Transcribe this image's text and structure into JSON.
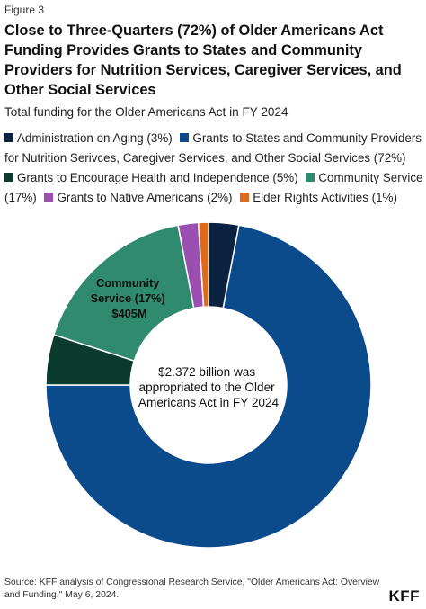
{
  "figure_label": "Figure 3",
  "brand": "KFF",
  "source": "Source: KFF analysis of Congressional Research Service, \"Older Americans Act: Overview and Funding,\" May 6, 2024.",
  "chart_data": {
    "type": "pie",
    "title": "Close to Three-Quarters (72%) of Older Americans Act Funding Provides Grants to States and Community Providers for Nutrition Services, Caregiver Services, and Other Social Services",
    "subtitle": "Total funding for the Older Americans Act in FY 2024",
    "legend_position": "top",
    "center_text": [
      "$2.372 billion was",
      "appropriated to the Older",
      "Americans Act in FY 2024"
    ],
    "slices": [
      {
        "label": "Administration on Aging (3%)",
        "value": 3,
        "color": "#0b2340"
      },
      {
        "label": "Grants to States and Community Providers for Nutrition Serivces, Caregiver Services, and Other Social Services (72%)",
        "value": 72,
        "color": "#0b4a8b"
      },
      {
        "label": "Grants to Encourage Health and Independence (5%)",
        "value": 5,
        "color": "#0b3b2c"
      },
      {
        "label": "Community Service (17%)",
        "value": 17,
        "color": "#2f8a6e",
        "callout": [
          "Community",
          "Service (17%)",
          "$405M"
        ]
      },
      {
        "label": "Grants to Native Americans (2%)",
        "value": 2,
        "color": "#9b4fb0"
      },
      {
        "label": "Elder Rights Activities (1%)",
        "value": 1,
        "color": "#e06a1b"
      }
    ]
  }
}
